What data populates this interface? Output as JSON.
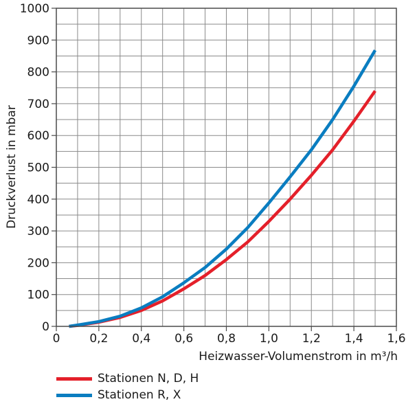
{
  "chart_data": {
    "type": "line",
    "xlabel": "Heizwasser-Volumenstrom in m³/h",
    "ylabel": "Druckverlust in mbar",
    "xlim": [
      0,
      1.6
    ],
    "ylim": [
      0,
      1000
    ],
    "x_ticks": [
      "0",
      "0,2",
      "0,4",
      "0,6",
      "0,8",
      "1,0",
      "1,2",
      "1,4",
      "1,6"
    ],
    "y_ticks": [
      "0",
      "100",
      "200",
      "300",
      "400",
      "500",
      "600",
      "700",
      "800",
      "900",
      "1000"
    ],
    "x_minor_step": 0.1,
    "y_minor_step": 50,
    "grid": true,
    "legend_position": "bottom-left",
    "series": [
      {
        "name": "Stationen N, D, H",
        "color": "#e4202a",
        "x": [
          0.06,
          0.1,
          0.2,
          0.3,
          0.4,
          0.5,
          0.6,
          0.7,
          0.8,
          0.9,
          1.0,
          1.1,
          1.2,
          1.3,
          1.4,
          1.5
        ],
        "y": [
          0,
          3,
          13,
          28,
          50,
          80,
          118,
          160,
          210,
          265,
          330,
          400,
          475,
          555,
          645,
          740
        ]
      },
      {
        "name": "Stationen R, X",
        "color": "#0a7dc0",
        "x": [
          0.06,
          0.1,
          0.2,
          0.3,
          0.4,
          0.5,
          0.6,
          0.7,
          0.8,
          0.9,
          1.0,
          1.1,
          1.2,
          1.3,
          1.4,
          1.5
        ],
        "y": [
          0,
          4,
          15,
          32,
          58,
          93,
          137,
          185,
          243,
          310,
          388,
          470,
          555,
          650,
          755,
          868
        ]
      }
    ]
  }
}
